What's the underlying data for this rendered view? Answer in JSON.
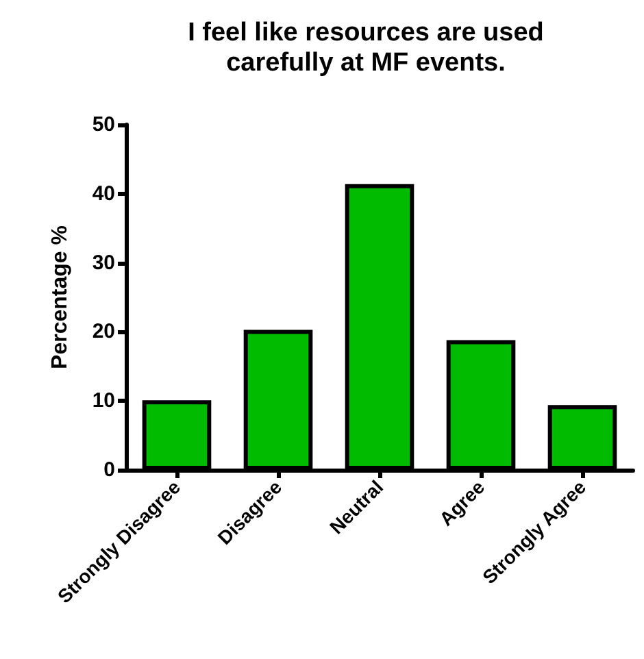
{
  "chart_data": {
    "type": "bar",
    "title": "I feel like resources are used\ncarefully at MF events.",
    "ylabel": "Percentage %",
    "categories": [
      "Strongly Disagree",
      "Disagree",
      "Neutral",
      "Agree",
      "Strongly Agree"
    ],
    "values": [
      10.1,
      20.3,
      41.4,
      18.8,
      9.4
    ],
    "color": "#00bb00",
    "ylim": [
      0,
      50
    ],
    "yticks": [
      0,
      10,
      20,
      30,
      40,
      50
    ],
    "grid": false
  }
}
